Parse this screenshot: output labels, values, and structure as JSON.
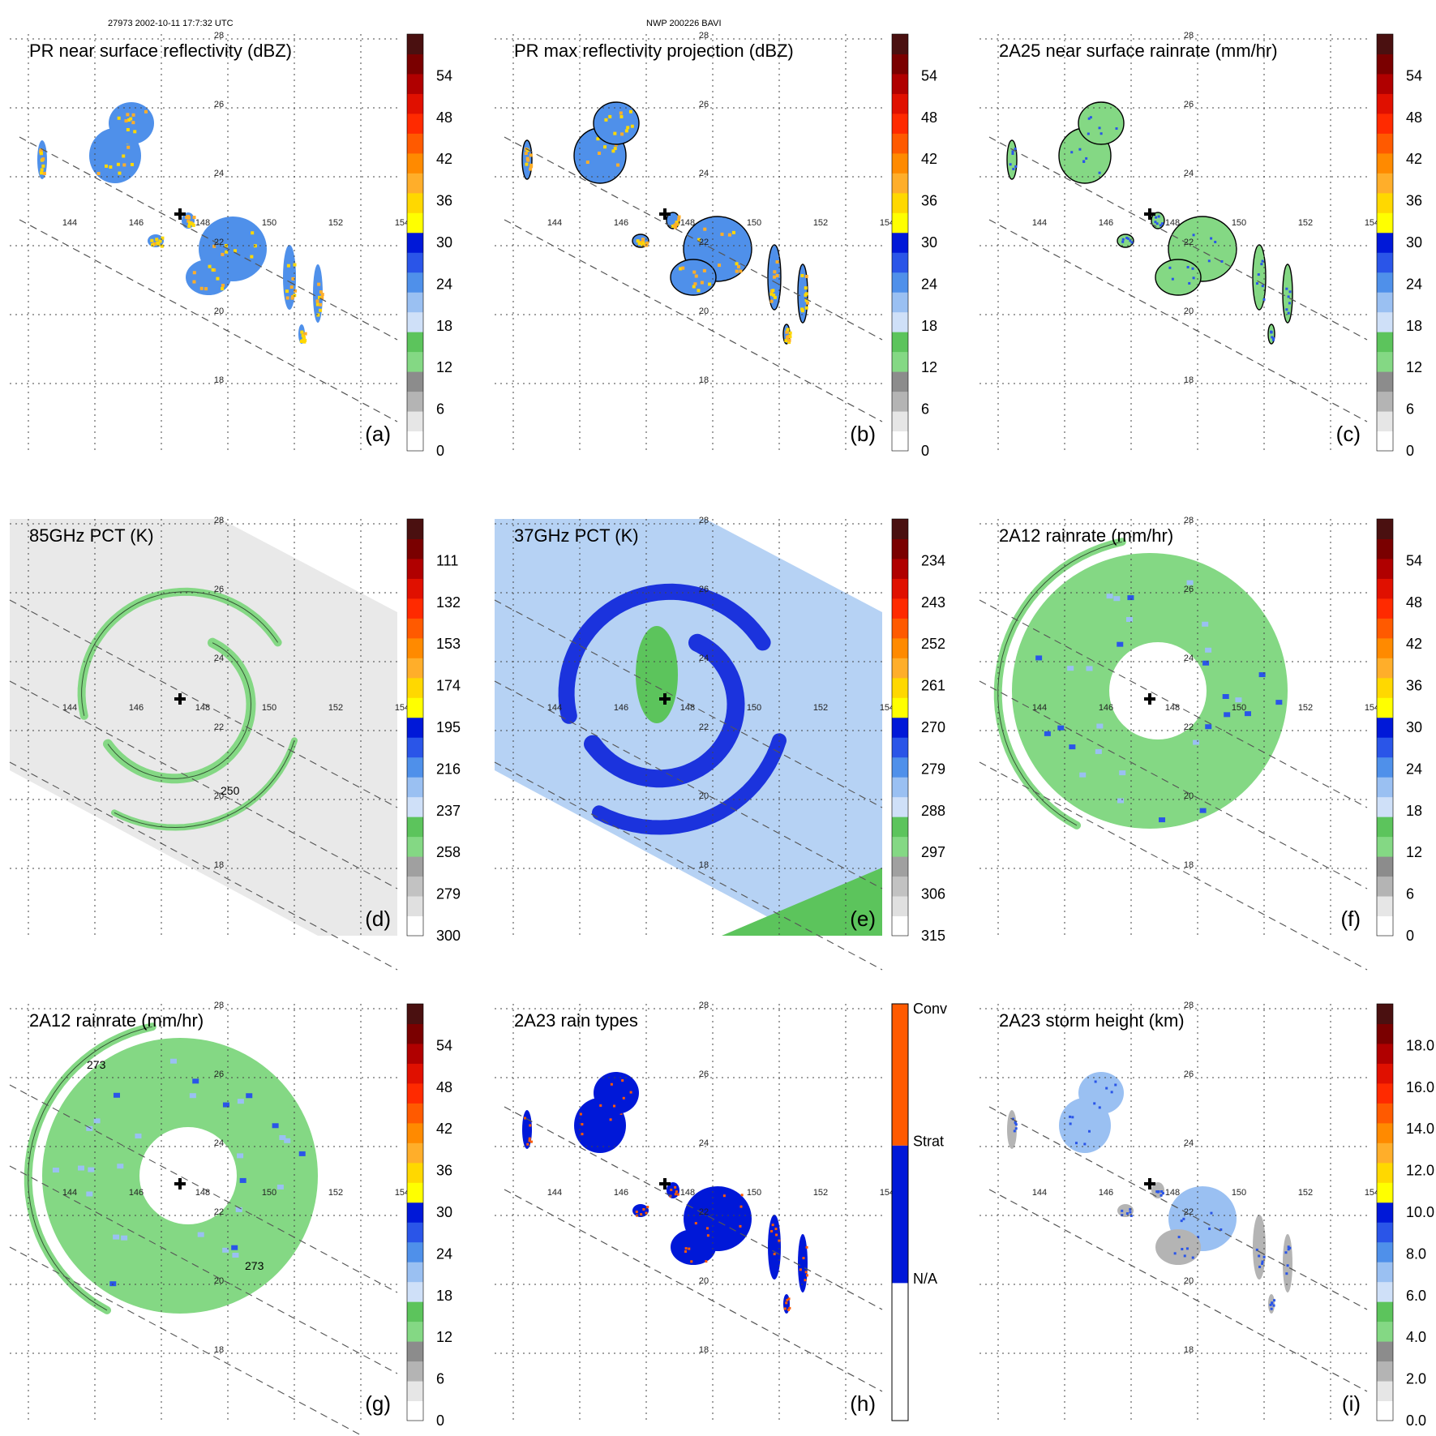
{
  "header": {
    "left": "27973 2002-10-11 17:7:32 UTC",
    "center": "NWP 200226 BAVI"
  },
  "axes": {
    "lon_labels": [
      "144",
      "146",
      "148",
      "150",
      "152",
      "154"
    ],
    "lat_labels": [
      "18",
      "20",
      "22",
      "24",
      "26",
      "28"
    ],
    "center_marker": "storm-center"
  },
  "chart_data": [
    {
      "type": "heatmap",
      "title": "PR near surface reflectivity (dBZ)",
      "panel_label": "(a)",
      "colorbar": {
        "ticks": [
          "0",
          "6",
          "12",
          "18",
          "24",
          "30",
          "36",
          "42",
          "48",
          "54"
        ]
      },
      "lon_range": [
        142.5,
        154.5
      ],
      "lat_range": [
        16.5,
        28.5
      ],
      "swath": "narrow"
    },
    {
      "type": "heatmap",
      "title": "PR max reflectivity projection (dBZ)",
      "panel_label": "(b)",
      "colorbar": {
        "ticks": [
          "0",
          "6",
          "12",
          "18",
          "24",
          "30",
          "36",
          "42",
          "48",
          "54"
        ]
      },
      "lon_range": [
        142.5,
        154.5
      ],
      "lat_range": [
        16.5,
        28.5
      ],
      "swath": "narrow"
    },
    {
      "type": "heatmap",
      "title": "2A25 near surface rainrate (mm/hr)",
      "panel_label": "(c)",
      "colorbar": {
        "ticks": [
          "0",
          "6",
          "12",
          "18",
          "24",
          "30",
          "36",
          "42",
          "48",
          "54"
        ]
      },
      "lon_range": [
        142.5,
        154.5
      ],
      "lat_range": [
        16.5,
        28.5
      ],
      "swath": "narrow"
    },
    {
      "type": "heatmap",
      "title": "85GHz PCT (K)",
      "panel_label": "(d)",
      "colorbar": {
        "ticks": [
          "300",
          "279",
          "258",
          "237",
          "216",
          "195",
          "174",
          "153",
          "132",
          "111"
        ]
      },
      "contour_label": "250",
      "lon_range": [
        142.5,
        154.5
      ],
      "lat_range": [
        16.5,
        28.5
      ],
      "swath": "wide"
    },
    {
      "type": "heatmap",
      "title": "37GHz PCT (K)",
      "panel_label": "(e)",
      "colorbar": {
        "ticks": [
          "315",
          "306",
          "297",
          "288",
          "279",
          "270",
          "261",
          "252",
          "243",
          "234"
        ]
      },
      "lon_range": [
        142.5,
        154.5
      ],
      "lat_range": [
        16.5,
        28.5
      ],
      "swath": "wide"
    },
    {
      "type": "heatmap",
      "title": "2A12 rainrate (mm/hr)",
      "panel_label": "(f)",
      "colorbar": {
        "ticks": [
          "0",
          "6",
          "12",
          "18",
          "24",
          "30",
          "36",
          "42",
          "48",
          "54"
        ]
      },
      "lon_range": [
        142.5,
        154.5
      ],
      "lat_range": [
        16.5,
        28.5
      ],
      "swath": "wide"
    },
    {
      "type": "heatmap",
      "title": "2A12 rainrate (mm/hr)",
      "panel_label": "(g)",
      "colorbar": {
        "ticks": [
          "0",
          "6",
          "12",
          "18",
          "24",
          "30",
          "36",
          "42",
          "48",
          "54"
        ]
      },
      "contour_labels": [
        "273",
        "273"
      ],
      "lon_range": [
        142.5,
        154.5
      ],
      "lat_range": [
        16.5,
        28.5
      ],
      "swath": "wide"
    },
    {
      "type": "heatmap",
      "title": "2A23 rain types",
      "panel_label": "(h)",
      "colorbar": {
        "categories": [
          "N/A",
          "Strat",
          "Conv"
        ]
      },
      "lon_range": [
        142.5,
        154.5
      ],
      "lat_range": [
        16.5,
        28.5
      ],
      "swath": "narrow"
    },
    {
      "type": "heatmap",
      "title": "2A23 storm height (km)",
      "panel_label": "(i)",
      "colorbar": {
        "ticks": [
          "0.0",
          "2.0",
          "4.0",
          "6.0",
          "8.0",
          "10.0",
          "12.0",
          "14.0",
          "16.0",
          "18.0"
        ]
      },
      "lon_range": [
        142.5,
        154.5
      ],
      "lat_range": [
        16.5,
        28.5
      ],
      "swath": "narrow"
    }
  ],
  "colors": {
    "grid": "#444444",
    "swath_edge": "#555555",
    "rain_ramp": [
      "#ffffff",
      "#e6e6e6",
      "#b4b4b4",
      "#8c8c8c",
      "#84d884",
      "#5cc45c",
      "#cfe0f8",
      "#9ac0f2",
      "#4f90ea",
      "#2a55e8",
      "#0018d8",
      "#ffff00",
      "#ffd800",
      "#ffae2a",
      "#ff8a00",
      "#ff5a00",
      "#ff2a00",
      "#e01000",
      "#b00000",
      "#7a0000",
      "#4a1010"
    ],
    "pct_ramp": [
      "#ffffff",
      "#e0e0e0",
      "#c2c2c2",
      "#a0a0a0",
      "#84d884",
      "#5cc45c",
      "#cfe0f8",
      "#9ac0f2",
      "#4f90ea",
      "#2a55e8",
      "#0018d8",
      "#ffff00",
      "#ffd800",
      "#ffae2a",
      "#ff8a00",
      "#ff5a00",
      "#ff2a00",
      "#e01000",
      "#b00000",
      "#7a0000",
      "#4a1010"
    ],
    "rain_type": [
      "#ffffff",
      "#0018d8",
      "#ff5a00"
    ]
  }
}
